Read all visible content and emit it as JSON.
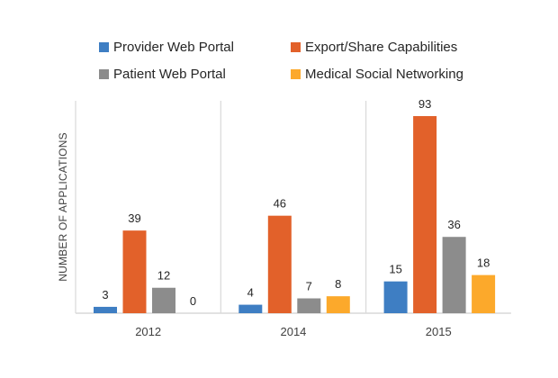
{
  "chart_data": {
    "type": "bar",
    "title": "",
    "xlabel": "",
    "ylabel": "NUMBER OF APPLICATIONS",
    "categories": [
      "2012",
      "2014",
      "2015"
    ],
    "series": [
      {
        "name": "Provider Web Portal",
        "color": "#3E7EC3",
        "values": [
          3,
          4,
          15
        ]
      },
      {
        "name": "Export/Share Capabilities",
        "color": "#E2612A",
        "values": [
          39,
          46,
          93
        ]
      },
      {
        "name": "Patient Web Portal",
        "color": "#8C8C8C",
        "values": [
          12,
          7,
          36
        ]
      },
      {
        "name": "Medical Social Networking",
        "color": "#FCA92B",
        "values": [
          0,
          8,
          18
        ]
      }
    ],
    "ylim": [
      0,
      100
    ],
    "grid": false,
    "group_separators": true,
    "data_labels": true,
    "legend_position": "top",
    "legend_layout": [
      [
        "Provider Web Portal",
        "Export/Share Capabilities"
      ],
      [
        "Patient Web Portal",
        "Medical Social Networking"
      ]
    ]
  }
}
